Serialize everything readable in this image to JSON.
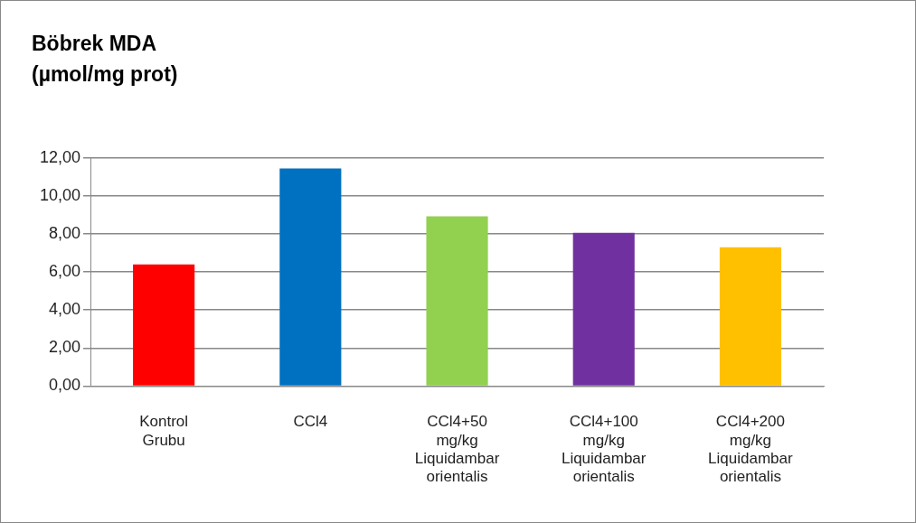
{
  "chart_data": {
    "type": "bar",
    "ylabel": "Böbrek MDA (µmol/mg prot)",
    "categories": [
      "Kontrol Grubu",
      "CCl4",
      "CCl4+50 mg/kg Liquidambar orientalis",
      "CCl4+100 mg/kg Liquidambar orientalis",
      "CCl4+200 mg/kg Liquidambar orientalis"
    ],
    "values": [
      6.4,
      11.45,
      8.93,
      8.06,
      7.3
    ],
    "colors": [
      "#ff0000",
      "#0070c0",
      "#92d050",
      "#7030a0",
      "#ffc000"
    ],
    "ylim": [
      0,
      12
    ],
    "yticks": [
      {
        "value": 0,
        "label": "0,00"
      },
      {
        "value": 2,
        "label": "2,00"
      },
      {
        "value": 4,
        "label": "4,00"
      },
      {
        "value": 6,
        "label": "6,00"
      },
      {
        "value": 8,
        "label": "8,00"
      },
      {
        "value": 10,
        "label": "10,00"
      },
      {
        "value": 12,
        "label": "12,00"
      }
    ],
    "grid": "y"
  }
}
